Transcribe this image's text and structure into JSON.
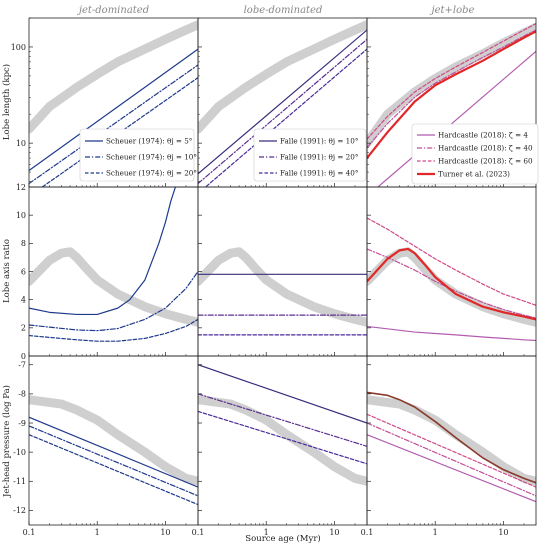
{
  "chart_data": {
    "type": "line",
    "title": "",
    "column_titles": [
      "jet-dominated",
      "lobe-dominated",
      "jet+lobe"
    ],
    "xlabel": "Source age (Myr)",
    "x_scale": "log",
    "xlim": [
      0.1,
      30
    ],
    "x_tick_values": [
      0.1,
      1,
      10
    ],
    "x_tick_labels": [
      "0.1",
      "1",
      "10"
    ],
    "rows": [
      {
        "ylabel": "Lobe length (kpc)",
        "y_scale": "log",
        "ylim": [
          3.5,
          200
        ],
        "y_tick_values": [
          10,
          100
        ],
        "y_tick_labels": [
          "10",
          "100"
        ]
      },
      {
        "ylabel": "Lobe axis ratio",
        "y_scale": "linear",
        "ylim": [
          0,
          12
        ],
        "y_tick_values": [
          0,
          2,
          4,
          6,
          8,
          10,
          12
        ],
        "y_tick_labels": [
          "0",
          "2",
          "4",
          "6",
          "8",
          "10",
          "12"
        ]
      },
      {
        "ylabel": "Jet-head pressure (log Pa)",
        "y_scale": "linear",
        "ylim": [
          -12.5,
          -6.7
        ],
        "y_tick_values": [
          -12,
          -11,
          -10,
          -9,
          -8,
          -7
        ],
        "y_tick_labels": [
          "-12",
          "-11",
          "-10",
          "-9",
          "-8",
          "-7"
        ]
      }
    ],
    "legends": [
      {
        "column": 0,
        "placement": "lower right",
        "entries": [
          {
            "label": "Scheuer (1974): θj = 5°",
            "color": "#1f3a8c",
            "dash": "solid"
          },
          {
            "label": "Scheuer (1974): θj = 10°",
            "color": "#1f3a8c",
            "dash": "dashdot"
          },
          {
            "label": "Scheuer (1974): θj = 20°",
            "color": "#1f3a8c",
            "dash": "dashed"
          }
        ]
      },
      {
        "column": 1,
        "placement": "lower right",
        "entries": [
          {
            "label": "Falle (1991): θj = 10°",
            "color": "#3a2e7c",
            "dash": "solid"
          },
          {
            "label": "Falle (1991): θj = 20°",
            "color": "#5b2f8f",
            "dash": "dashdot"
          },
          {
            "label": "Falle (1991): θj = 40°",
            "color": "#4a2a9c",
            "dash": "dashed"
          }
        ]
      },
      {
        "column": 2,
        "placement": "lower right",
        "entries": [
          {
            "label": "Hardcastle (2018): ζ = 4",
            "color": "#b35cb0",
            "dash": "solid"
          },
          {
            "label": "Hardcastle (2018): ζ = 40",
            "color": "#c24f9a",
            "dash": "dashdot"
          },
          {
            "label": "Hardcastle (2018): ζ = 60",
            "color": "#d04a88",
            "dash": "dashed"
          },
          {
            "label": "Turner et al. (2023)",
            "color": "#e02828",
            "dash": "solid"
          }
        ]
      }
    ],
    "series": [
      {
        "row": 0,
        "col": 0,
        "kind": "band",
        "color": "#cfcfcf",
        "x": [
          0.1,
          0.2,
          0.5,
          1,
          2,
          5,
          10,
          20,
          30
        ],
        "y": [
          14,
          24,
          38,
          52,
          70,
          95,
          120,
          150,
          170
        ]
      },
      {
        "row": 0,
        "col": 0,
        "color": "#1f3a8c",
        "dash": "solid",
        "x": [
          0.1,
          30
        ],
        "y": [
          5.2,
          95
        ]
      },
      {
        "row": 0,
        "col": 0,
        "color": "#1f3a8c",
        "dash": "dashdot",
        "x": [
          0.1,
          30
        ],
        "y": [
          3.8,
          65
        ]
      },
      {
        "row": 0,
        "col": 0,
        "color": "#1f3a8c",
        "dash": "dashed",
        "x": [
          0.1,
          30
        ],
        "y": [
          2.8,
          48
        ]
      },
      {
        "row": 0,
        "col": 1,
        "kind": "band",
        "color": "#cfcfcf",
        "x": [
          0.1,
          0.2,
          0.5,
          1,
          2,
          5,
          10,
          20,
          30
        ],
        "y": [
          14,
          24,
          38,
          52,
          70,
          95,
          120,
          150,
          170
        ]
      },
      {
        "row": 0,
        "col": 1,
        "color": "#3a2e7c",
        "dash": "solid",
        "x": [
          0.1,
          30
        ],
        "y": [
          4.8,
          150
        ]
      },
      {
        "row": 0,
        "col": 1,
        "color": "#5b2f8f",
        "dash": "dashdot",
        "x": [
          0.1,
          30
        ],
        "y": [
          3.8,
          120
        ]
      },
      {
        "row": 0,
        "col": 1,
        "color": "#4a2a9c",
        "dash": "dashed",
        "x": [
          0.1,
          30
        ],
        "y": [
          3.0,
          95
        ]
      },
      {
        "row": 0,
        "col": 2,
        "kind": "band",
        "color": "#cfcfcf",
        "x": [
          0.1,
          0.2,
          0.5,
          1,
          2,
          5,
          10,
          20,
          30
        ],
        "y": [
          10,
          20,
          34,
          47,
          62,
          85,
          110,
          140,
          160
        ]
      },
      {
        "row": 0,
        "col": 2,
        "color": "#b35cb0",
        "dash": "solid",
        "x": [
          0.1,
          30
        ],
        "y": [
          2.8,
          90
        ]
      },
      {
        "row": 0,
        "col": 2,
        "color": "#c24f9a",
        "dash": "dashdot",
        "x": [
          0.1,
          0.2,
          0.5,
          1,
          2,
          5,
          10,
          20,
          30
        ],
        "y": [
          9,
          16,
          30,
          42,
          55,
          78,
          100,
          130,
          150
        ]
      },
      {
        "row": 0,
        "col": 2,
        "color": "#d04a88",
        "dash": "dashed",
        "x": [
          0.1,
          0.2,
          0.5,
          1,
          2,
          5,
          10,
          20,
          30
        ],
        "y": [
          11,
          19,
          34,
          47,
          62,
          88,
          115,
          150,
          175
        ]
      },
      {
        "row": 0,
        "col": 2,
        "color": "#e02828",
        "dash": "solid",
        "width": 2.2,
        "x": [
          0.1,
          0.2,
          0.5,
          1,
          2,
          5,
          10,
          20,
          30
        ],
        "y": [
          7,
          13,
          27,
          40,
          52,
          72,
          95,
          125,
          145
        ]
      },
      {
        "row": 1,
        "col": 0,
        "kind": "band",
        "color": "#cfcfcf",
        "x": [
          0.1,
          0.2,
          0.3,
          0.4,
          0.5,
          0.7,
          1,
          2,
          5,
          10,
          20,
          30
        ],
        "y": [
          5.3,
          6.8,
          7.3,
          7.4,
          7.0,
          6.2,
          5.4,
          4.4,
          3.5,
          3.0,
          2.6,
          2.4
        ]
      },
      {
        "row": 1,
        "col": 0,
        "color": "#1f3a8c",
        "dash": "solid",
        "x": [
          0.1,
          0.2,
          0.5,
          1,
          2,
          3,
          5,
          8,
          10,
          12,
          14
        ],
        "y": [
          3.4,
          3.1,
          2.95,
          2.95,
          3.4,
          4.0,
          5.4,
          8.0,
          9.5,
          11.0,
          12
        ]
      },
      {
        "row": 1,
        "col": 0,
        "color": "#1f3a8c",
        "dash": "dashdot",
        "x": [
          0.1,
          0.5,
          1,
          2,
          5,
          10,
          20,
          30
        ],
        "y": [
          2.2,
          1.85,
          1.8,
          1.95,
          2.6,
          3.4,
          4.8,
          6.0
        ]
      },
      {
        "row": 1,
        "col": 0,
        "color": "#1f3a8c",
        "dash": "dashed",
        "x": [
          0.1,
          0.5,
          1,
          2,
          5,
          10,
          20,
          30
        ],
        "y": [
          1.45,
          1.15,
          1.05,
          1.05,
          1.25,
          1.6,
          2.1,
          2.6
        ]
      },
      {
        "row": 1,
        "col": 1,
        "kind": "band",
        "color": "#cfcfcf",
        "x": [
          0.1,
          0.2,
          0.3,
          0.4,
          0.5,
          0.7,
          1,
          2,
          5,
          10,
          20,
          30
        ],
        "y": [
          5.3,
          6.8,
          7.3,
          7.4,
          7.0,
          6.2,
          5.4,
          4.4,
          3.5,
          3.0,
          2.6,
          2.4
        ]
      },
      {
        "row": 1,
        "col": 1,
        "color": "#3a2e7c",
        "dash": "solid",
        "x": [
          0.1,
          30
        ],
        "y": [
          5.8,
          5.8
        ]
      },
      {
        "row": 1,
        "col": 1,
        "color": "#5b2f8f",
        "dash": "dashdot",
        "x": [
          0.1,
          30
        ],
        "y": [
          2.9,
          2.9
        ]
      },
      {
        "row": 1,
        "col": 1,
        "color": "#4a2a9c",
        "dash": "dashed",
        "x": [
          0.1,
          30
        ],
        "y": [
          1.5,
          1.5
        ]
      },
      {
        "row": 1,
        "col": 2,
        "kind": "band",
        "color": "#cfcfcf",
        "x": [
          0.1,
          0.2,
          0.3,
          0.4,
          0.5,
          0.7,
          1,
          2,
          5,
          10,
          20,
          30
        ],
        "y": [
          5.3,
          6.8,
          7.3,
          7.4,
          7.0,
          6.2,
          5.4,
          4.4,
          3.5,
          3.0,
          2.6,
          2.4
        ]
      },
      {
        "row": 1,
        "col": 2,
        "color": "#b35cb0",
        "dash": "solid",
        "x": [
          0.1,
          0.5,
          1,
          2,
          5,
          10,
          20,
          30
        ],
        "y": [
          2.1,
          1.7,
          1.6,
          1.5,
          1.35,
          1.25,
          1.15,
          1.1
        ]
      },
      {
        "row": 1,
        "col": 2,
        "color": "#c24f9a",
        "dash": "dashdot",
        "x": [
          0.1,
          0.2,
          0.5,
          1,
          2,
          5,
          10,
          20,
          30
        ],
        "y": [
          7.6,
          7.0,
          6.1,
          5.3,
          4.6,
          3.8,
          3.3,
          2.9,
          2.7
        ]
      },
      {
        "row": 1,
        "col": 2,
        "color": "#d04a88",
        "dash": "dashed",
        "x": [
          0.1,
          0.2,
          0.5,
          1,
          2,
          5,
          10,
          20,
          30
        ],
        "y": [
          9.8,
          9.0,
          7.8,
          6.9,
          6.1,
          5.1,
          4.4,
          3.9,
          3.6
        ]
      },
      {
        "row": 1,
        "col": 2,
        "color": "#e02828",
        "dash": "solid",
        "width": 2.2,
        "x": [
          0.1,
          0.2,
          0.3,
          0.4,
          0.5,
          0.7,
          1,
          2,
          5,
          10,
          20,
          30
        ],
        "y": [
          5.3,
          6.9,
          7.5,
          7.6,
          7.3,
          6.5,
          5.6,
          4.4,
          3.5,
          3.1,
          2.8,
          2.6
        ]
      },
      {
        "row": 2,
        "col": 0,
        "kind": "band",
        "color": "#cfcfcf",
        "x": [
          0.1,
          0.3,
          0.5,
          1,
          2,
          5,
          10,
          20,
          30
        ],
        "y": [
          -8.2,
          -8.35,
          -8.55,
          -8.9,
          -9.4,
          -10.0,
          -10.5,
          -10.9,
          -11.0
        ]
      },
      {
        "row": 2,
        "col": 0,
        "color": "#1f3a8c",
        "dash": "solid",
        "x": [
          0.1,
          30
        ],
        "y": [
          -8.8,
          -11.2
        ]
      },
      {
        "row": 2,
        "col": 0,
        "color": "#1f3a8c",
        "dash": "dashdot",
        "x": [
          0.1,
          30
        ],
        "y": [
          -9.1,
          -11.5
        ]
      },
      {
        "row": 2,
        "col": 0,
        "color": "#1f3a8c",
        "dash": "dashed",
        "x": [
          0.1,
          30
        ],
        "y": [
          -9.4,
          -11.8
        ]
      },
      {
        "row": 2,
        "col": 1,
        "kind": "band",
        "color": "#cfcfcf",
        "x": [
          0.1,
          0.3,
          0.5,
          1,
          2,
          5,
          10,
          20,
          30
        ],
        "y": [
          -8.2,
          -8.35,
          -8.55,
          -8.9,
          -9.4,
          -10.0,
          -10.5,
          -10.9,
          -11.0
        ]
      },
      {
        "row": 2,
        "col": 1,
        "color": "#3a2e7c",
        "dash": "solid",
        "x": [
          0.1,
          30
        ],
        "y": [
          -7.0,
          -9.0
        ]
      },
      {
        "row": 2,
        "col": 1,
        "color": "#5b2f8f",
        "dash": "dashdot",
        "x": [
          0.1,
          30
        ],
        "y": [
          -8.0,
          -9.8
        ]
      },
      {
        "row": 2,
        "col": 1,
        "color": "#4a2a9c",
        "dash": "dashed",
        "x": [
          0.1,
          30
        ],
        "y": [
          -8.6,
          -10.4
        ]
      },
      {
        "row": 2,
        "col": 2,
        "kind": "band",
        "color": "#cfcfcf",
        "x": [
          0.1,
          0.3,
          0.5,
          1,
          2,
          5,
          10,
          20,
          30
        ],
        "y": [
          -8.2,
          -8.35,
          -8.55,
          -8.9,
          -9.4,
          -10.0,
          -10.5,
          -10.9,
          -11.0
        ]
      },
      {
        "row": 2,
        "col": 2,
        "color": "#b35cb0",
        "dash": "solid",
        "x": [
          0.1,
          30
        ],
        "y": [
          -9.4,
          -11.7
        ]
      },
      {
        "row": 2,
        "col": 2,
        "color": "#c24f9a",
        "dash": "dashdot",
        "x": [
          0.1,
          30
        ],
        "y": [
          -9.0,
          -11.5
        ]
      },
      {
        "row": 2,
        "col": 2,
        "color": "#d04a88",
        "dash": "dashed",
        "x": [
          0.1,
          30
        ],
        "y": [
          -8.7,
          -11.2
        ]
      },
      {
        "row": 2,
        "col": 2,
        "color": "#8a3a2a",
        "dash": "solid",
        "width": 1.6,
        "x": [
          0.1,
          0.2,
          0.3,
          0.5,
          1,
          2,
          5,
          10,
          20,
          30
        ],
        "y": [
          -7.95,
          -8.05,
          -8.2,
          -8.45,
          -8.95,
          -9.5,
          -10.2,
          -10.6,
          -10.9,
          -11.05
        ]
      }
    ]
  }
}
